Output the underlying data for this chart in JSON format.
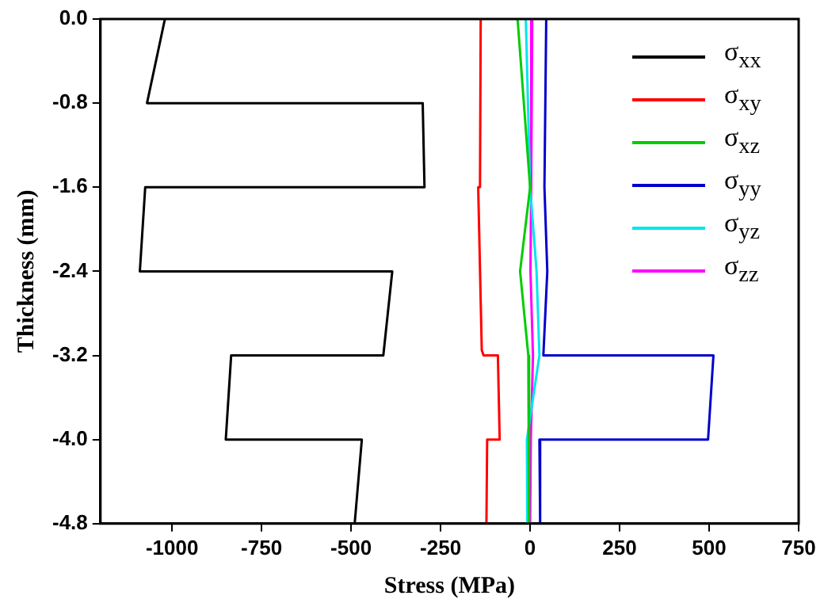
{
  "chart_data": {
    "type": "line",
    "xlabel": "Stress (MPa)",
    "ylabel": "Thickness (mm)",
    "xlim": [
      -1200,
      750
    ],
    "xticks": [
      -1000,
      -750,
      -500,
      -250,
      0,
      250,
      500,
      750
    ],
    "ylim": [
      -4.8,
      0
    ],
    "yticks": [
      {
        "value": 0,
        "label": "0.0"
      },
      -0.8,
      -1.6,
      -2.4,
      -3.2,
      {
        "value": -4.0,
        "label": "-4.0"
      },
      -4.8
    ],
    "grid": false,
    "legend": "top right",
    "series": [
      {
        "name": "σ$_{xx}$",
        "color": "#000000",
        "x": [
          -1020,
          -1070,
          -300,
          -295,
          -1075,
          -1090,
          -385,
          -410,
          -835,
          -850,
          -470,
          -490
        ],
        "values": [
          0,
          -0.8,
          -0.8,
          -1.6,
          -1.6,
          -2.4,
          -2.4,
          -3.2,
          -3.2,
          -4.0,
          -4.0,
          -4.8
        ]
      },
      {
        "name": "σ$_{xy}$",
        "color": "#ff0000",
        "x": [
          -138,
          -140,
          -145,
          -135,
          -130,
          -90,
          -85,
          -120,
          -122
        ],
        "values": [
          0,
          -1.6,
          -1.6,
          -3.15,
          -3.2,
          -3.2,
          -4.0,
          -4.0,
          -4.8
        ]
      },
      {
        "name": "σ$_{xz}$",
        "color": "#00cc00",
        "x": [
          -35,
          0,
          -28,
          -5,
          -3
        ],
        "values": [
          0,
          -1.6,
          -2.4,
          -3.2,
          -4.8
        ]
      },
      {
        "name": "σ$_{yy}$",
        "color": "#0000cc",
        "x": [
          45,
          40,
          48,
          37,
          512,
          497,
          26,
          28
        ],
        "values": [
          0,
          -1.6,
          -2.4,
          -3.2,
          -3.2,
          -4.0,
          -4.0,
          -4.8
        ]
      },
      {
        "name": "σ$_{yz}$",
        "color": "#00e5ee",
        "x": [
          -12,
          0,
          18,
          26,
          -9,
          -8
        ],
        "values": [
          0,
          -1.6,
          -2.4,
          -3.2,
          -4.0,
          -4.8
        ]
      },
      {
        "name": "σ$_{zz}$",
        "color": "#ff00ff",
        "x": [
          6,
          3,
          1,
          8,
          2,
          0
        ],
        "values": [
          0,
          -1.6,
          -2.4,
          -3.2,
          -4.0,
          -4.8
        ]
      }
    ]
  }
}
